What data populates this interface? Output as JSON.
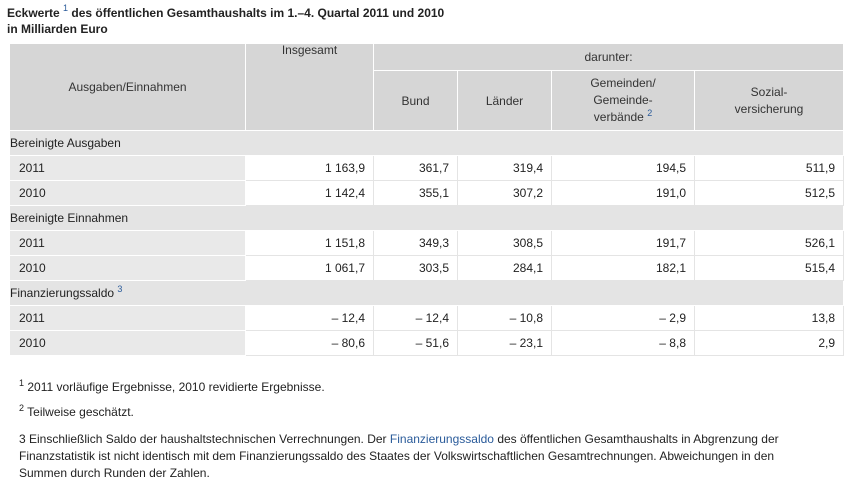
{
  "title": {
    "part1": "Eckwerte",
    "sup": "1",
    "part2": "des öffentlichen Gesamthaushalts im 1.–4. Quartal 2011 und 2010",
    "line2": "in Milliarden Euro"
  },
  "header": {
    "col1": "Ausgaben/Einnahmen",
    "col2": "Insgesamt",
    "darunter": "darunter:",
    "bund": "Bund",
    "laender": "Länder",
    "gemeinden_l1": "Gemeinden/",
    "gemeinden_l2": "Gemeinde-",
    "gemeinden_l3": "verbände",
    "gemeinden_sup": "2",
    "sozial_l1": "Sozial-",
    "sozial_l2": "versicherung"
  },
  "sections": [
    {
      "label": "Bereinigte Ausgaben",
      "sup": "",
      "rows": [
        {
          "year": "2011",
          "insgesamt": "1 163,9",
          "bund": "361,7",
          "laender": "319,4",
          "gemeinden": "194,5",
          "sozial": "511,9"
        },
        {
          "year": "2010",
          "insgesamt": "1 142,4",
          "bund": "355,1",
          "laender": "307,2",
          "gemeinden": "191,0",
          "sozial": "512,5"
        }
      ]
    },
    {
      "label": "Bereinigte Einnahmen",
      "sup": "",
      "rows": [
        {
          "year": "2011",
          "insgesamt": "1 151,8",
          "bund": "349,3",
          "laender": "308,5",
          "gemeinden": "191,7",
          "sozial": "526,1"
        },
        {
          "year": "2010",
          "insgesamt": "1 061,7",
          "bund": "303,5",
          "laender": "284,1",
          "gemeinden": "182,1",
          "sozial": "515,4"
        }
      ]
    },
    {
      "label": "Finanzierungssaldo",
      "sup": "3",
      "rows": [
        {
          "year": "2011",
          "insgesamt": "– 12,4",
          "bund": "– 12,4",
          "laender": "– 10,8",
          "gemeinden": "– 2,9",
          "sozial": "13,8"
        },
        {
          "year": "2010",
          "insgesamt": "– 80,6",
          "bund": "– 51,6",
          "laender": "– 23,1",
          "gemeinden": "– 8,8",
          "sozial": "2,9"
        }
      ]
    }
  ],
  "footnotes": {
    "f1_sup": "1",
    "f1_text": "2011 vorläufige Ergebnisse, 2010 revidierte Ergebnisse.",
    "f2_sup": "2",
    "f2_text": "Teilweise geschätzt.",
    "f3_pre": "3 Einschließlich Saldo der haushaltstechnischen Verrechnungen. Der",
    "f3_link": "Finanzierungssaldo",
    "f3_post": "des öffentlichen Gesamthaushalts in Abgrenzung der Finanzstatistik ist nicht identisch mit dem Finanzierungssaldo des Staates der Volkswirtschaftlichen Gesamtrechnungen. Abweichungen in den Summen durch Runden der Zahlen."
  }
}
